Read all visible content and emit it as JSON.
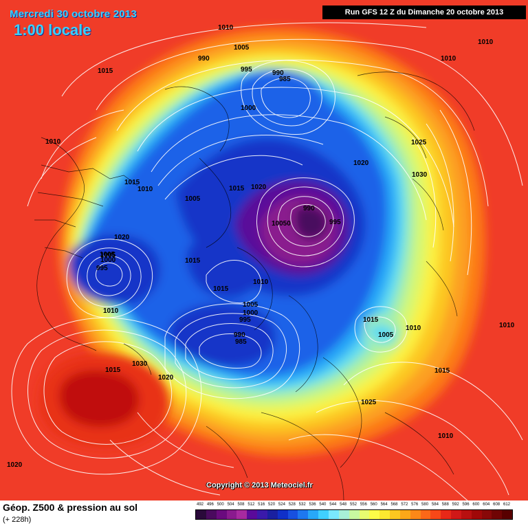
{
  "header": {
    "date": "Mercredi 30 octobre 2013",
    "local_time": "1:00 locale",
    "run_info": "Run GFS 12 Z du Dimanche 20 octobre 2013"
  },
  "map": {
    "projection": "north-polar-stereographic",
    "field": "500 hPa geopotential (shaded) and mean sea level pressure (contours)",
    "pressure_labels": [
      "1010",
      "1005",
      "990",
      "995",
      "990",
      "985",
      "1015",
      "1010",
      "1015",
      "1000",
      "1025",
      "1020",
      "1030",
      "1015",
      "1010",
      "1010",
      "1010",
      "1005",
      "1020",
      "1005",
      "1015",
      "990",
      "995",
      "10050",
      "1020",
      "1005",
      "1000",
      "995",
      "1015",
      "1010",
      "1015",
      "1005",
      "1000",
      "995",
      "990",
      "985",
      "1005",
      "1010",
      "1015",
      "1010",
      "1015",
      "1030",
      "1020",
      "1025",
      "1020",
      "1010",
      "1010"
    ]
  },
  "copyright": "Copyright © 2013 Meteociel.fr",
  "footer": {
    "field_title": "Géop. Z500 & pression au sol",
    "lead_time": "(+ 228h)"
  },
  "legend": {
    "ticks": [
      "492",
      "496",
      "500",
      "504",
      "508",
      "512",
      "516",
      "520",
      "524",
      "528",
      "532",
      "536",
      "540",
      "544",
      "548",
      "552",
      "556",
      "560",
      "564",
      "568",
      "572",
      "576",
      "580",
      "584",
      "588",
      "592",
      "596",
      "600",
      "604",
      "608",
      "612"
    ],
    "colors": [
      "#2a0a3a",
      "#4a0a5e",
      "#6a0a7e",
      "#8a1a8e",
      "#a82aa0",
      "#5a0a9a",
      "#3a1aaa",
      "#1a20a0",
      "#1030c8",
      "#1850e0",
      "#1e78f0",
      "#28a8f8",
      "#40d0ff",
      "#7ae8ff",
      "#a8f0d8",
      "#c8f8a0",
      "#e8fc70",
      "#fcfc48",
      "#fce830",
      "#fcc820",
      "#fca818",
      "#fc8818",
      "#fc6818",
      "#f84818",
      "#e82818",
      "#d01818",
      "#b81010",
      "#a00808",
      "#880808",
      "#700404",
      "#580000"
    ]
  }
}
